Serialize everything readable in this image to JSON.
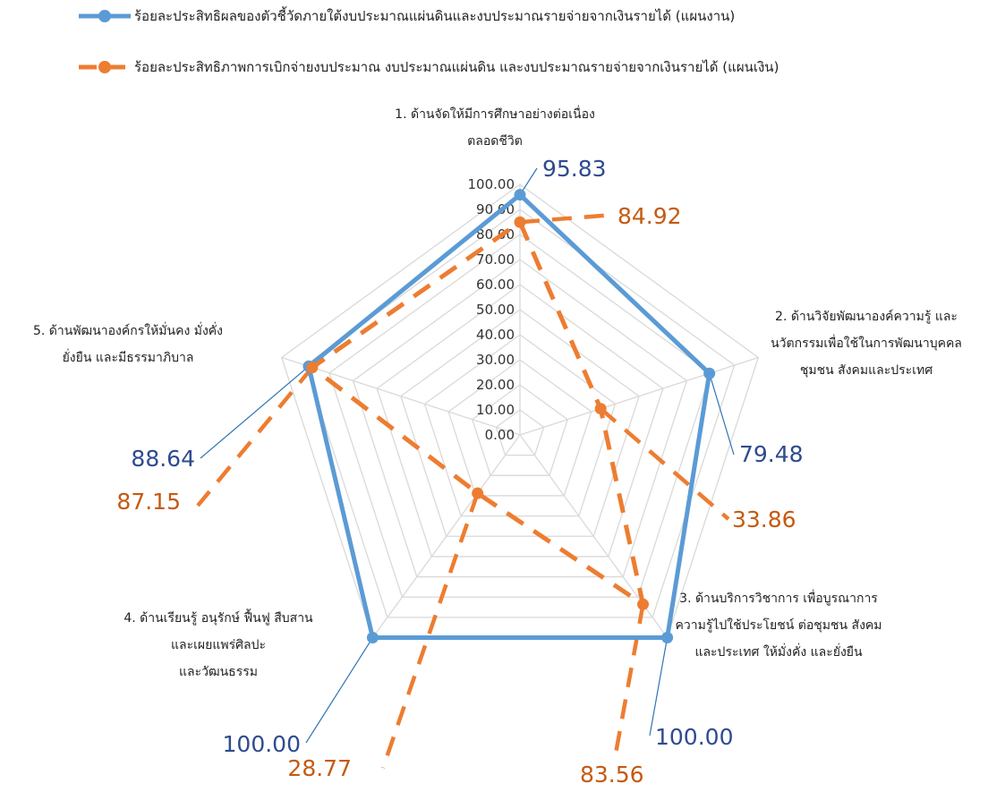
{
  "chart_data": {
    "type": "radar",
    "categories": [
      [
        "1. ด้านจัดให้มีการศึกษาอย่างต่อเนื่อง",
        "ตลอดชีวิต"
      ],
      [
        "2. ด้านวิจัยพัฒนาองค์ความรู้ และ",
        "นวัตกรรมเพื่อใช้ในการพัฒนาบุคคล",
        "ชุมชน สังคมและประเทศ"
      ],
      [
        "3. ด้านบริการวิชาการ เพื่อบูรณาการ",
        "ความรู้ไปใช้ประโยชน์ ต่อชุมชน สังคม",
        "และประเทศ ให้มั่งคั่ง และยั่งยืน"
      ],
      [
        "4. ด้านเรียนรู้ อนุรักษ์ ฟื้นฟู สืบสาน",
        "และเผยแพร่ศิลปะ",
        "และวัฒนธรรม"
      ],
      [
        "5. ด้านพัฒนาองค์กรให้มั่นคง มั่งคั่ง",
        "ยั่งยืน และมีธรรมาภิบาล"
      ]
    ],
    "series": [
      {
        "name": "ร้อยละประสิทธิผลของตัวชี้วัดภายใต้งบประมาณแผ่นดินและงบประมาณรายจ่ายจากเงินรายได้ (แผนงาน)",
        "values": [
          95.83,
          79.48,
          100.0,
          100.0,
          88.64
        ],
        "labels": [
          "95.83",
          "79.48",
          "100.00",
          "100.00",
          "88.64"
        ],
        "color": "#5b9bd5",
        "label_color": "#2f4b8f",
        "style": "solid"
      },
      {
        "name": "ร้อยละประสิทธิภาพการเบิกจ่ายงบประมาณ งบประมาณแผ่นดิน และงบประมาณรายจ่ายจากเงินรายได้ (แผนเงิน)",
        "values": [
          84.92,
          33.86,
          83.56,
          28.77,
          87.15
        ],
        "labels": [
          "84.92",
          "33.86",
          "83.56",
          "28.77",
          "87.15"
        ],
        "color": "#ed7d31",
        "label_color": "#c55a11",
        "style": "dashed"
      }
    ],
    "r_ticks": [
      "0.00",
      "10.00",
      "20.00",
      "30.00",
      "40.00",
      "50.00",
      "60.00",
      "70.00",
      "80.00",
      "90.00",
      "100.00"
    ],
    "rlim": [
      0,
      100
    ],
    "grid": true,
    "legend_position": "top"
  }
}
